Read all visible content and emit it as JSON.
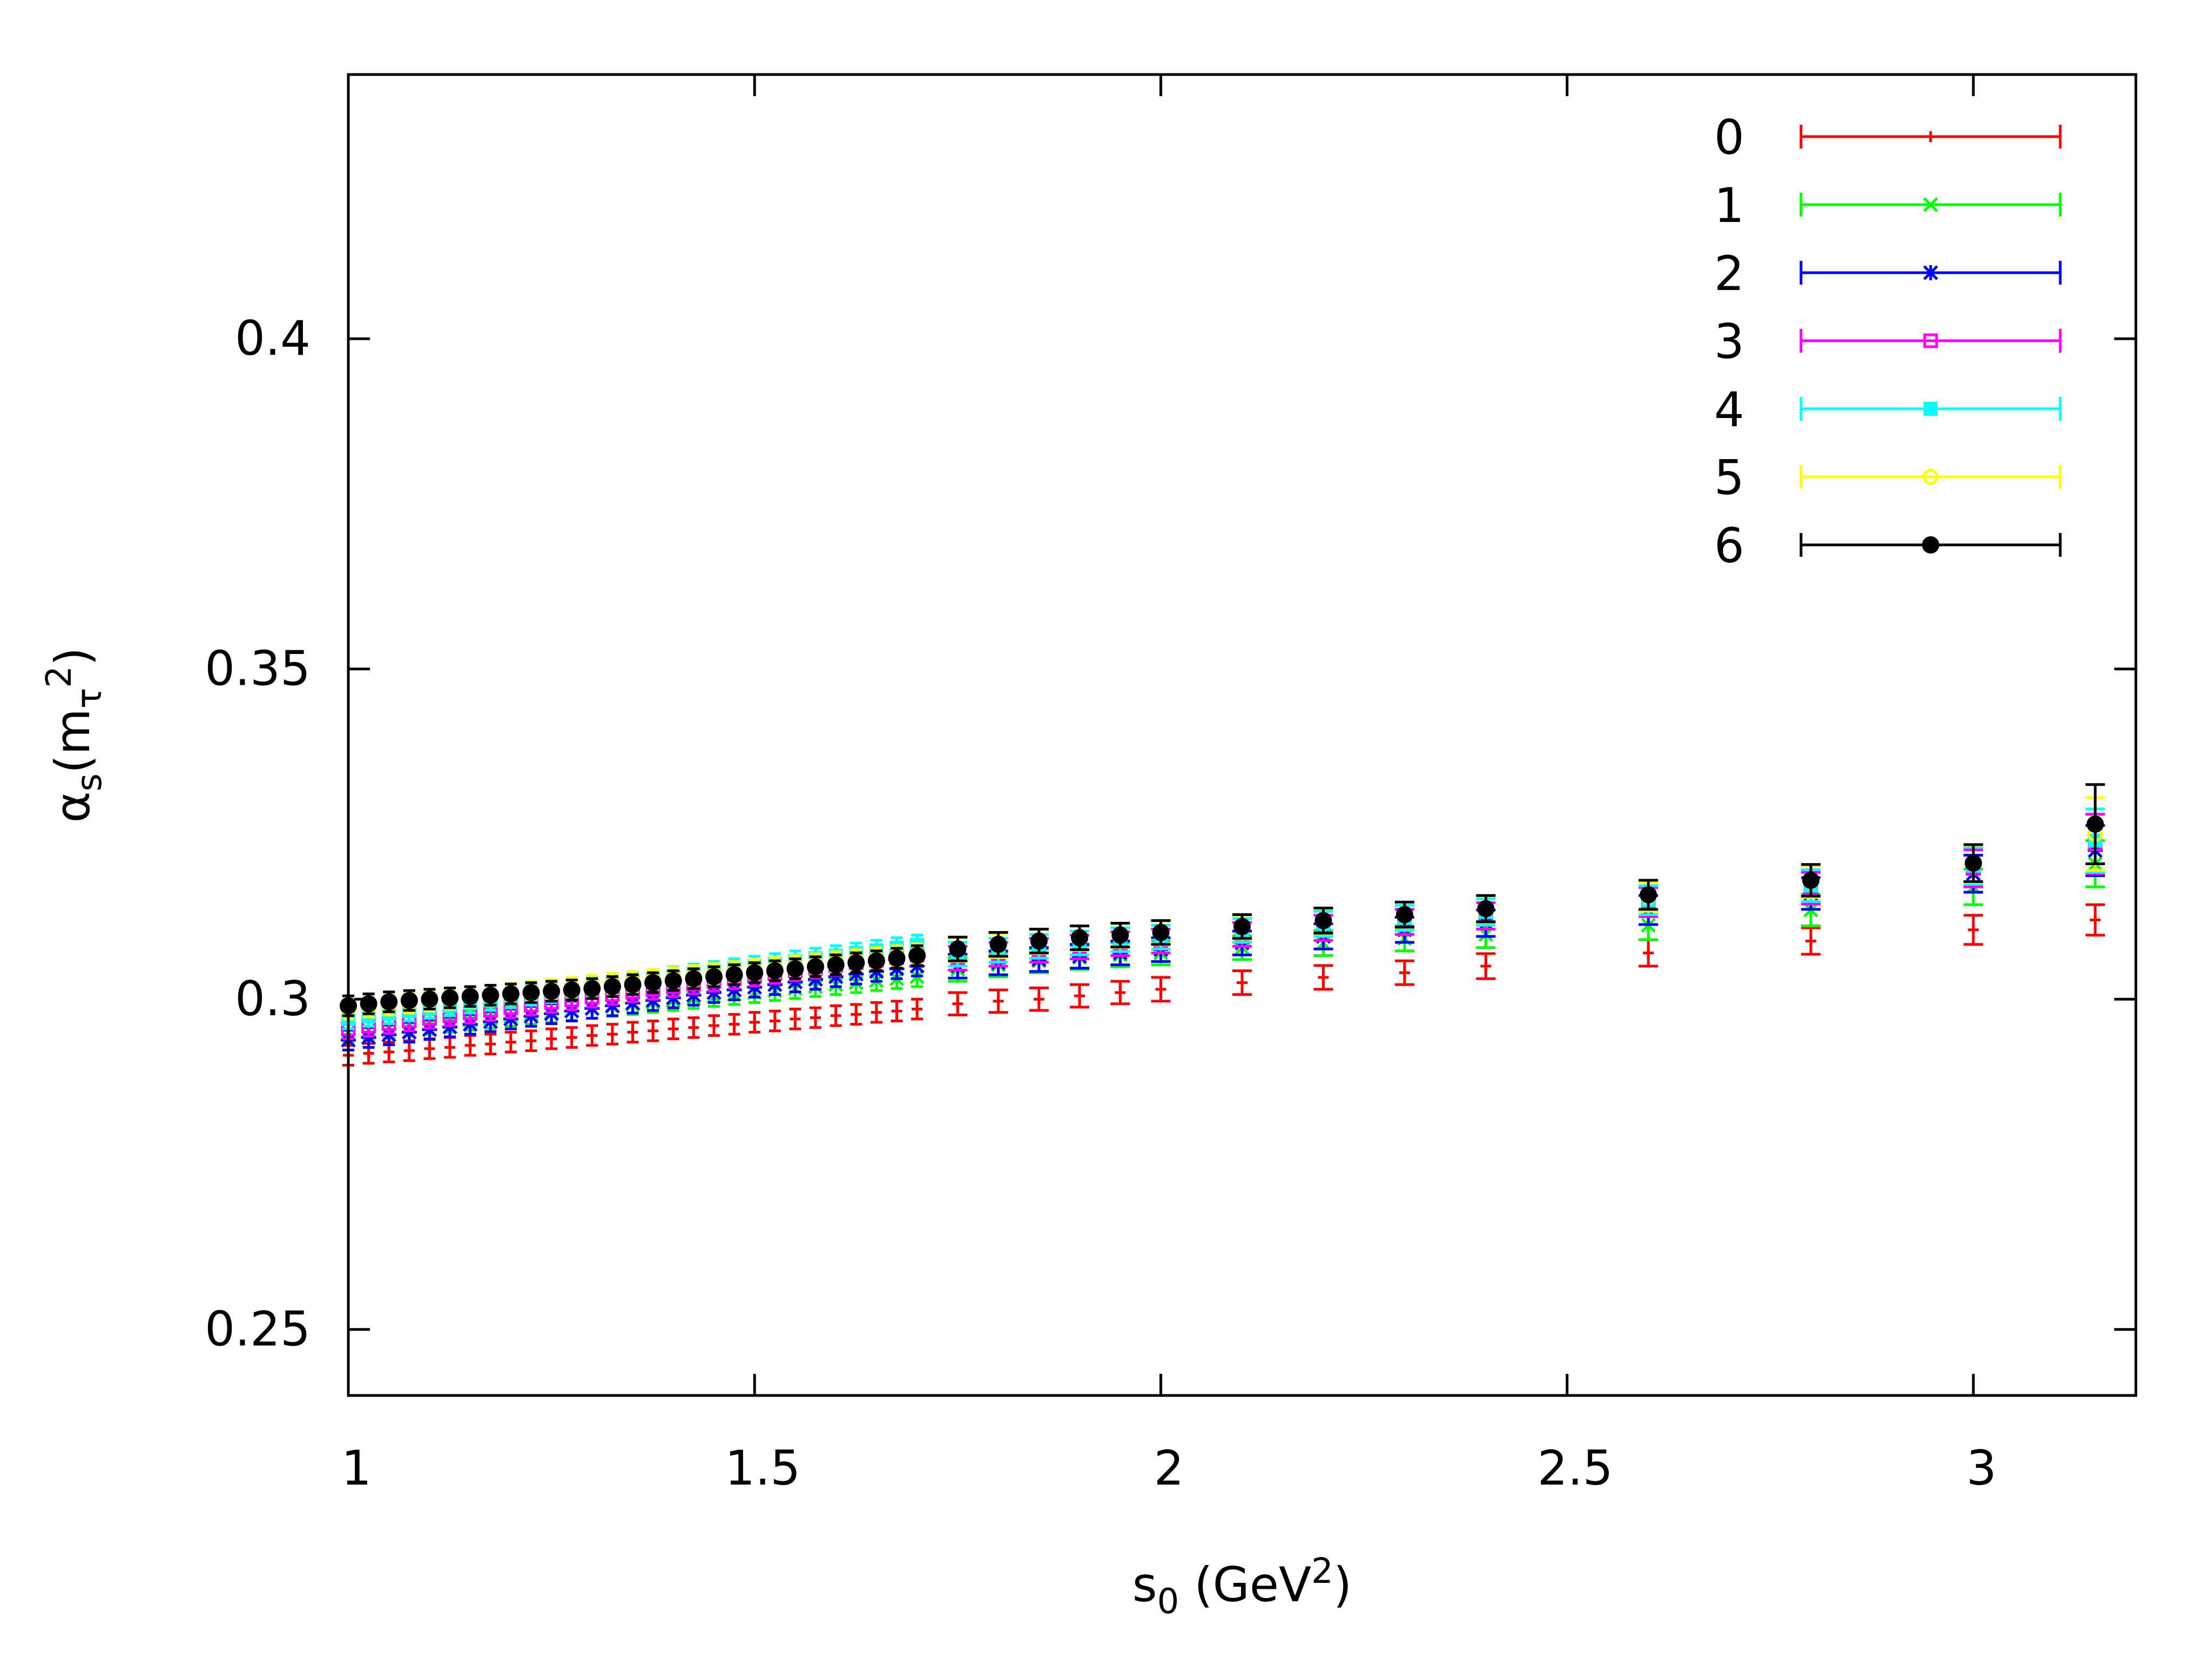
{
  "chart_data": {
    "type": "scatter",
    "title": "",
    "xlabel_base": "s",
    "xlabel_sub": "0",
    "xlabel_rest": " (GeV",
    "xlabel_sup": "2",
    "xlabel_close": ")",
    "ylabel_base": "α",
    "ylabel_sub": "s",
    "ylabel_open": "(m",
    "ylabel_sub2": "τ",
    "ylabel_sup": "2",
    "ylabel_close": ")",
    "xlim": [
      1,
      3.2
    ],
    "ylim": [
      0.24,
      0.44
    ],
    "x_ticks": [
      1,
      1.5,
      2,
      2.5,
      3
    ],
    "x_tick_labels": [
      "1",
      "1.5",
      "2",
      "2.5",
      "3"
    ],
    "y_ticks": [
      0.25,
      0.3,
      0.35,
      0.4
    ],
    "y_tick_labels": [
      "0.25",
      "0.3",
      "0.35",
      "0.4"
    ],
    "legend_position": "top-right",
    "x": [
      1.0,
      1.025,
      1.05,
      1.075,
      1.1,
      1.125,
      1.15,
      1.175,
      1.2,
      1.225,
      1.25,
      1.275,
      1.3,
      1.325,
      1.35,
      1.375,
      1.4,
      1.425,
      1.45,
      1.475,
      1.5,
      1.525,
      1.55,
      1.575,
      1.6,
      1.625,
      1.65,
      1.675,
      1.7,
      1.75,
      1.8,
      1.85,
      1.9,
      1.95,
      2.0,
      2.1,
      2.2,
      2.3,
      2.4,
      2.6,
      2.8,
      3.0,
      3.15
    ],
    "series": [
      {
        "name": "0",
        "color": "#ff0000",
        "marker": "plus",
        "values": [
          0.2915,
          0.2918,
          0.292,
          0.2922,
          0.2925,
          0.2927,
          0.293,
          0.2932,
          0.2935,
          0.2937,
          0.294,
          0.2942,
          0.2945,
          0.2947,
          0.295,
          0.2952,
          0.2955,
          0.2957,
          0.296,
          0.2962,
          0.2965,
          0.2967,
          0.297,
          0.2972,
          0.2975,
          0.2977,
          0.298,
          0.2982,
          0.2985,
          0.2993,
          0.2997,
          0.3,
          0.3005,
          0.301,
          0.3015,
          0.3025,
          0.3033,
          0.304,
          0.305,
          0.307,
          0.3088,
          0.3105,
          0.312
        ],
        "errors": [
          0.0015,
          0.0015,
          0.0015,
          0.0015,
          0.0015,
          0.0015,
          0.0015,
          0.0015,
          0.0015,
          0.0015,
          0.0015,
          0.0015,
          0.0015,
          0.0015,
          0.0015,
          0.0015,
          0.0015,
          0.0015,
          0.0015,
          0.0015,
          0.0015,
          0.0015,
          0.0015,
          0.0015,
          0.0015,
          0.0015,
          0.0015,
          0.0015,
          0.0015,
          0.0017,
          0.0017,
          0.0017,
          0.0017,
          0.0017,
          0.0018,
          0.0018,
          0.0018,
          0.0018,
          0.0019,
          0.002,
          0.002,
          0.0022,
          0.0023
        ]
      },
      {
        "name": "1",
        "color": "#00ff00",
        "marker": "x",
        "values": [
          0.295,
          0.2953,
          0.2956,
          0.2959,
          0.2962,
          0.2965,
          0.2968,
          0.2971,
          0.2974,
          0.2977,
          0.298,
          0.2983,
          0.2986,
          0.2989,
          0.2992,
          0.2995,
          0.2998,
          0.3001,
          0.3004,
          0.3007,
          0.301,
          0.3013,
          0.3016,
          0.3019,
          0.3022,
          0.3025,
          0.3028,
          0.3031,
          0.3034,
          0.3045,
          0.3052,
          0.3058,
          0.3063,
          0.3067,
          0.307,
          0.3078,
          0.3085,
          0.3092,
          0.3098,
          0.3112,
          0.3135,
          0.317,
          0.3205
        ],
        "errors": [
          0.0015,
          0.0015,
          0.0015,
          0.0015,
          0.0015,
          0.0015,
          0.0015,
          0.0015,
          0.0015,
          0.0015,
          0.0015,
          0.0015,
          0.0015,
          0.0015,
          0.0015,
          0.0015,
          0.0015,
          0.0015,
          0.0015,
          0.0015,
          0.0015,
          0.0015,
          0.0015,
          0.0015,
          0.0015,
          0.0015,
          0.0015,
          0.0015,
          0.0015,
          0.0018,
          0.0018,
          0.0018,
          0.0018,
          0.0018,
          0.0018,
          0.0018,
          0.0019,
          0.0019,
          0.002,
          0.0022,
          0.0024,
          0.0027,
          0.0035
        ]
      },
      {
        "name": "2",
        "color": "#0000ff",
        "marker": "star",
        "values": [
          0.2938,
          0.2942,
          0.2946,
          0.295,
          0.2954,
          0.2958,
          0.2962,
          0.2966,
          0.297,
          0.2974,
          0.2978,
          0.2982,
          0.2986,
          0.299,
          0.2994,
          0.2998,
          0.3002,
          0.3006,
          0.301,
          0.3014,
          0.3018,
          0.3022,
          0.3026,
          0.303,
          0.3034,
          0.3038,
          0.3042,
          0.3046,
          0.305,
          0.305,
          0.3055,
          0.306,
          0.3065,
          0.307,
          0.3075,
          0.3085,
          0.3095,
          0.3105,
          0.3115,
          0.3135,
          0.316,
          0.319,
          0.3225
        ],
        "errors": [
          0.0015,
          0.0015,
          0.0015,
          0.0015,
          0.0015,
          0.0015,
          0.0015,
          0.0015,
          0.0015,
          0.0015,
          0.0015,
          0.0015,
          0.0015,
          0.0015,
          0.0015,
          0.0015,
          0.0015,
          0.0015,
          0.0015,
          0.0015,
          0.0015,
          0.0015,
          0.0015,
          0.0015,
          0.0015,
          0.0015,
          0.0015,
          0.0015,
          0.0015,
          0.0018,
          0.0018,
          0.0018,
          0.0018,
          0.0018,
          0.0018,
          0.0018,
          0.0019,
          0.0019,
          0.002,
          0.0022,
          0.0024,
          0.0028,
          0.0038
        ]
      },
      {
        "name": "3",
        "color": "#ff00ff",
        "marker": "open-square",
        "values": [
          0.2955,
          0.2959,
          0.2963,
          0.2967,
          0.2971,
          0.2975,
          0.2979,
          0.2983,
          0.2987,
          0.2991,
          0.2995,
          0.2999,
          0.3003,
          0.3007,
          0.3011,
          0.3015,
          0.3019,
          0.3023,
          0.3027,
          0.3031,
          0.3035,
          0.3039,
          0.3043,
          0.3047,
          0.3051,
          0.3055,
          0.3059,
          0.3063,
          0.3067,
          0.3062,
          0.3068,
          0.3074,
          0.3079,
          0.3084,
          0.3088,
          0.3098,
          0.3108,
          0.3117,
          0.3126,
          0.3147,
          0.3168,
          0.3198,
          0.3235
        ],
        "errors": [
          0.0015,
          0.0015,
          0.0015,
          0.0015,
          0.0015,
          0.0015,
          0.0015,
          0.0015,
          0.0015,
          0.0015,
          0.0015,
          0.0015,
          0.0015,
          0.0015,
          0.0015,
          0.0015,
          0.0015,
          0.0015,
          0.0015,
          0.0015,
          0.0015,
          0.0015,
          0.0015,
          0.0015,
          0.0015,
          0.0015,
          0.0015,
          0.0015,
          0.0015,
          0.0018,
          0.0018,
          0.0018,
          0.0018,
          0.0018,
          0.0018,
          0.0018,
          0.0019,
          0.0019,
          0.002,
          0.0022,
          0.0024,
          0.0028,
          0.0045
        ]
      },
      {
        "name": "4",
        "color": "#00ffff",
        "marker": "filled-square",
        "values": [
          0.297,
          0.2974,
          0.2978,
          0.2982,
          0.2986,
          0.299,
          0.2994,
          0.2998,
          0.3002,
          0.3006,
          0.301,
          0.3014,
          0.3018,
          0.3022,
          0.3026,
          0.303,
          0.3034,
          0.3038,
          0.3042,
          0.3046,
          0.305,
          0.3054,
          0.3058,
          0.3062,
          0.3066,
          0.307,
          0.3074,
          0.3078,
          0.3082,
          0.3068,
          0.3074,
          0.308,
          0.3085,
          0.309,
          0.3094,
          0.3104,
          0.3114,
          0.3123,
          0.3132,
          0.315,
          0.3172,
          0.3202,
          0.324
        ],
        "errors": [
          0.0015,
          0.0015,
          0.0015,
          0.0015,
          0.0015,
          0.0015,
          0.0015,
          0.0015,
          0.0015,
          0.0015,
          0.0015,
          0.0015,
          0.0015,
          0.0015,
          0.0015,
          0.0015,
          0.0015,
          0.0015,
          0.0015,
          0.0015,
          0.0015,
          0.0015,
          0.0015,
          0.0015,
          0.0015,
          0.0015,
          0.0015,
          0.0015,
          0.0015,
          0.0018,
          0.0018,
          0.0018,
          0.0018,
          0.0018,
          0.0018,
          0.0018,
          0.0019,
          0.0019,
          0.002,
          0.0022,
          0.0024,
          0.0028,
          0.0048
        ]
      },
      {
        "name": "5",
        "color": "#ffff00",
        "marker": "open-circle",
        "values": [
          0.2985,
          0.2988,
          0.2991,
          0.2994,
          0.2997,
          0.3,
          0.3003,
          0.3006,
          0.3009,
          0.3012,
          0.3015,
          0.3018,
          0.3021,
          0.3024,
          0.3027,
          0.303,
          0.3033,
          0.3036,
          0.3039,
          0.3042,
          0.3045,
          0.3048,
          0.3051,
          0.3054,
          0.3057,
          0.306,
          0.3063,
          0.3066,
          0.3069,
          0.3075,
          0.3081,
          0.3087,
          0.3092,
          0.3096,
          0.31,
          0.3109,
          0.3118,
          0.3127,
          0.3136,
          0.3155,
          0.3178,
          0.3205,
          0.325
        ],
        "errors": [
          0.0015,
          0.0015,
          0.0015,
          0.0015,
          0.0015,
          0.0015,
          0.0015,
          0.0015,
          0.0015,
          0.0015,
          0.0015,
          0.0015,
          0.0015,
          0.0015,
          0.0015,
          0.0015,
          0.0015,
          0.0015,
          0.0015,
          0.0015,
          0.0015,
          0.0015,
          0.0015,
          0.0015,
          0.0015,
          0.0015,
          0.0015,
          0.0015,
          0.0015,
          0.0018,
          0.0018,
          0.0018,
          0.0018,
          0.0018,
          0.0018,
          0.0018,
          0.0019,
          0.0019,
          0.002,
          0.0022,
          0.0024,
          0.0028,
          0.0055
        ]
      },
      {
        "name": "6",
        "color": "#000000",
        "marker": "filled-circle",
        "values": [
          0.299,
          0.2993,
          0.2996,
          0.2998,
          0.3,
          0.3002,
          0.3004,
          0.3006,
          0.3008,
          0.301,
          0.3012,
          0.3014,
          0.3016,
          0.3019,
          0.3022,
          0.3025,
          0.3028,
          0.3031,
          0.3034,
          0.3037,
          0.304,
          0.3043,
          0.3046,
          0.3049,
          0.3052,
          0.3055,
          0.3058,
          0.3062,
          0.3066,
          0.3076,
          0.3083,
          0.3088,
          0.3093,
          0.3097,
          0.3101,
          0.311,
          0.3119,
          0.3128,
          0.3137,
          0.3158,
          0.318,
          0.3206,
          0.3265
        ],
        "errors": [
          0.0015,
          0.0015,
          0.0015,
          0.0015,
          0.0015,
          0.0015,
          0.0015,
          0.0015,
          0.0015,
          0.0015,
          0.0015,
          0.0015,
          0.0015,
          0.0015,
          0.0015,
          0.0015,
          0.0015,
          0.0015,
          0.0015,
          0.0015,
          0.0015,
          0.0015,
          0.0015,
          0.0015,
          0.0015,
          0.0015,
          0.0015,
          0.0015,
          0.0015,
          0.0018,
          0.0018,
          0.0018,
          0.0018,
          0.0018,
          0.0018,
          0.0018,
          0.0019,
          0.0019,
          0.002,
          0.0022,
          0.0024,
          0.0028,
          0.006
        ]
      }
    ]
  }
}
